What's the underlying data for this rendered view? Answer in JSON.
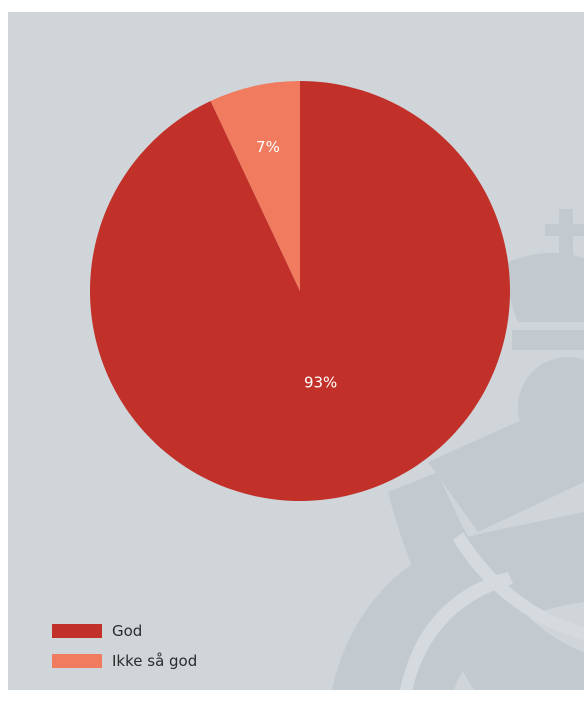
{
  "chart_data": {
    "type": "pie",
    "slices": [
      {
        "label": "God",
        "value": 93,
        "display": "93%",
        "color": "#c1312a"
      },
      {
        "label": "Ikke så god",
        "value": 7,
        "display": "7%",
        "color": "#f07b5f"
      }
    ],
    "legend_placement": "bottom-left",
    "start_angle": "12 o'clock",
    "direction": "clockwise"
  },
  "legend": {
    "items": [
      {
        "label": "God",
        "color": "#c1312a"
      },
      {
        "label": "Ikke så god",
        "color": "#f07b5f"
      }
    ]
  },
  "theme": {
    "panel_background": "#cfd5d9",
    "watermark_color": "#c3cacf"
  }
}
